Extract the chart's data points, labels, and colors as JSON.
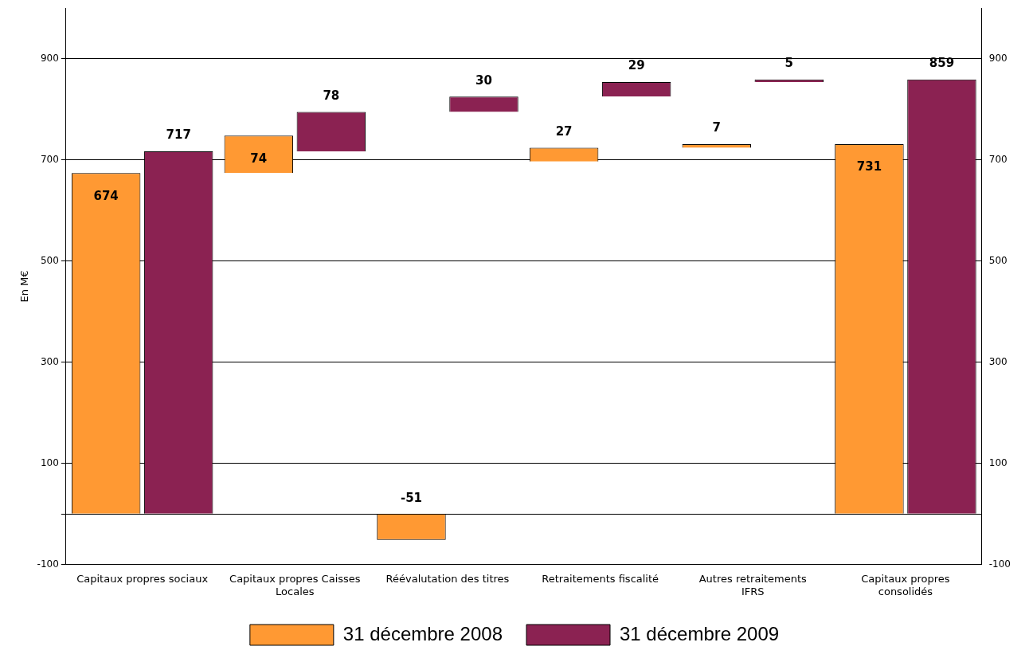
{
  "chart_data": {
    "type": "bar",
    "ylabel": "En M€",
    "categories": [
      "Capitaux propres sociaux",
      "Capitaux propres Caisses Locales",
      "Réévalutation des titres",
      "Retraitements fiscalité",
      "Autres retraitements IFRS",
      "Capitaux propres consolidés"
    ],
    "series": [
      {
        "name": "31 décembre 2008",
        "color": "#ff9933",
        "values": [
          674,
          74,
          -51,
          27,
          7,
          731
        ],
        "base": [
          0,
          674,
          0,
          697,
          724,
          0
        ]
      },
      {
        "name": "31 décembre 2009",
        "color": "#8b2252",
        "values": [
          717,
          78,
          30,
          29,
          5,
          859
        ],
        "base": [
          0,
          717,
          795,
          825,
          854,
          0
        ]
      }
    ],
    "ylim": [
      -100,
      1000
    ],
    "yticks": [
      -100,
      {
        "value": 0,
        "label": null
      },
      100,
      300,
      500,
      700,
      900
    ],
    "y2lim": [
      -100,
      1000
    ],
    "y2ticks": [
      -100,
      100,
      300,
      500,
      700,
      900
    ],
    "grid": "y",
    "legend": "bottom",
    "data_labels": true
  }
}
